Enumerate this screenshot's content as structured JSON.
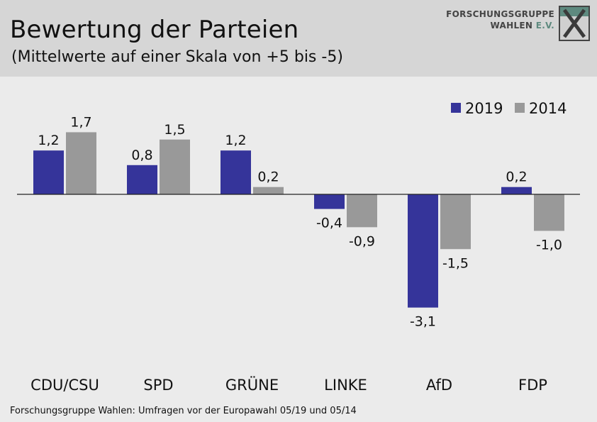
{
  "header": {
    "title": "Bewertung der Parteien",
    "subtitle": "(Mittelwerte auf einer Skala von +5 bis -5)",
    "logo_line1": "FORSCHUNGSGRUPPE",
    "logo_line2_main": "WAHLEN",
    "logo_line2_accent": "E.V."
  },
  "source": "Forschungsgruppe Wahlen: Umfragen vor der Europawahl 05/19 und 05/14",
  "chart_data": {
    "type": "bar",
    "title": "Bewertung der Parteien",
    "subtitle": "(Mittelwerte auf einer Skala von +5 bis -5)",
    "categories": [
      "CDU/CSU",
      "SPD",
      "GRÜNE",
      "LINKE",
      "AfD",
      "FDP"
    ],
    "series": [
      {
        "name": "2019",
        "color": "#35349a",
        "values": [
          1.2,
          0.8,
          1.2,
          -0.4,
          -3.1,
          0.2
        ],
        "labels": [
          "1,2",
          "0,8",
          "1,2",
          "-0,4",
          "-3,1",
          "0,2"
        ]
      },
      {
        "name": "2014",
        "color": "#999999",
        "values": [
          1.7,
          1.5,
          0.2,
          -0.9,
          -1.5,
          -1.0
        ],
        "labels": [
          "1,7",
          "1,5",
          "0,2",
          "-0,9",
          "-1,5",
          "-1,0"
        ]
      }
    ],
    "ylim": [
      -5,
      5
    ],
    "legend_position": "top-right",
    "grid": false
  }
}
